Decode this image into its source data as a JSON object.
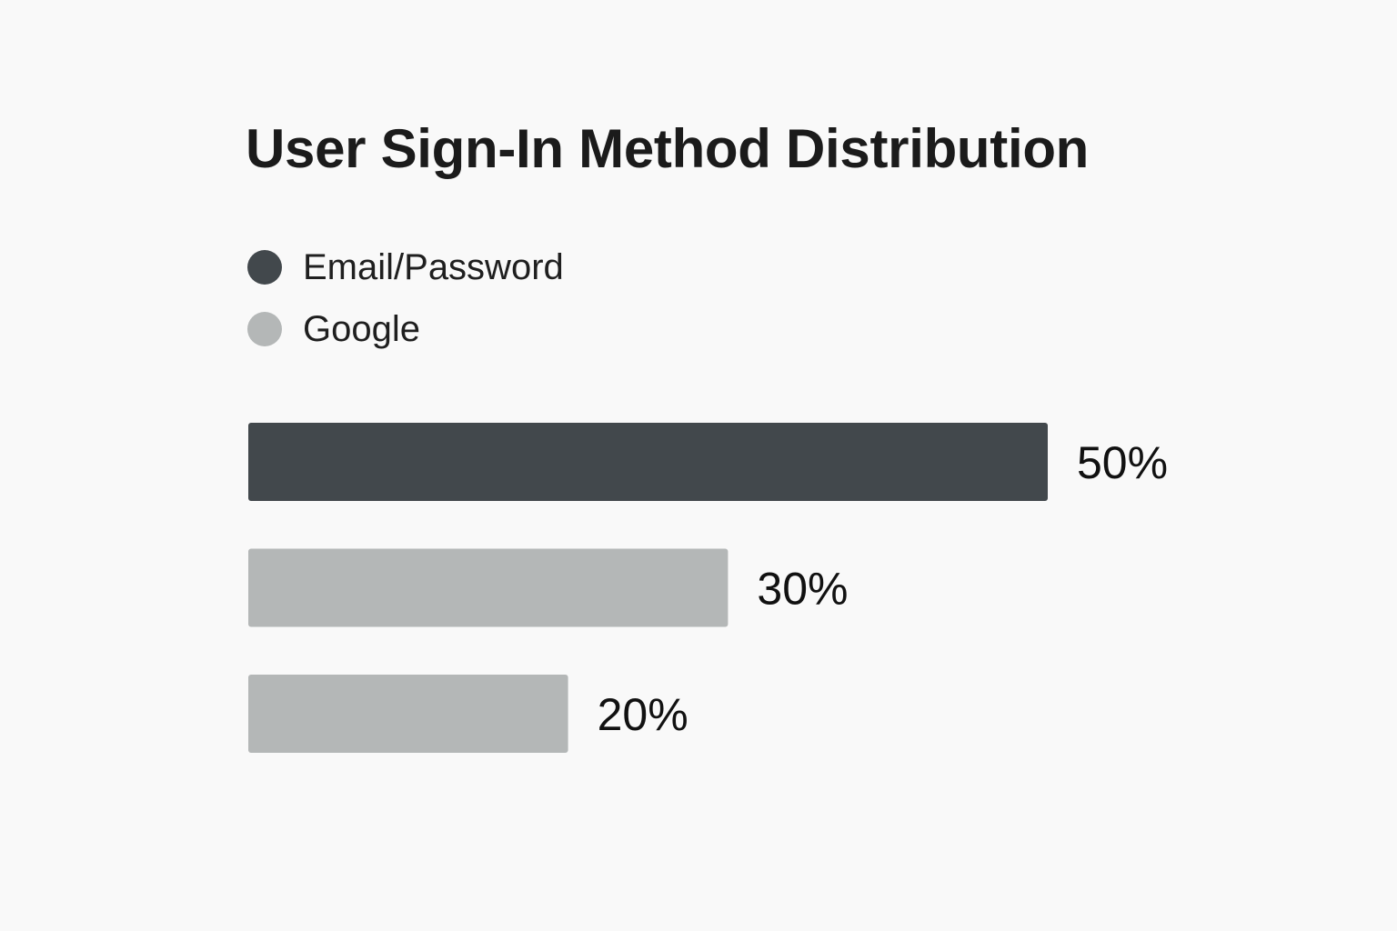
{
  "chart_data": {
    "type": "bar",
    "orientation": "horizontal",
    "title": "User Sign-In Method Distribution",
    "legend": [
      {
        "label": "Email/Password",
        "color": "#42484c"
      },
      {
        "label": "Google",
        "color": "#b4b7b7"
      }
    ],
    "bars": [
      {
        "value": 50,
        "label": "50%",
        "color": "#42484c"
      },
      {
        "value": 30,
        "label": "30%",
        "color": "#b4b7b7"
      },
      {
        "value": 20,
        "label": "20%",
        "color": "#b4b7b7"
      }
    ],
    "unit": "%",
    "xlim": [
      0,
      50
    ],
    "grid": false,
    "legend_position": "top-left"
  }
}
